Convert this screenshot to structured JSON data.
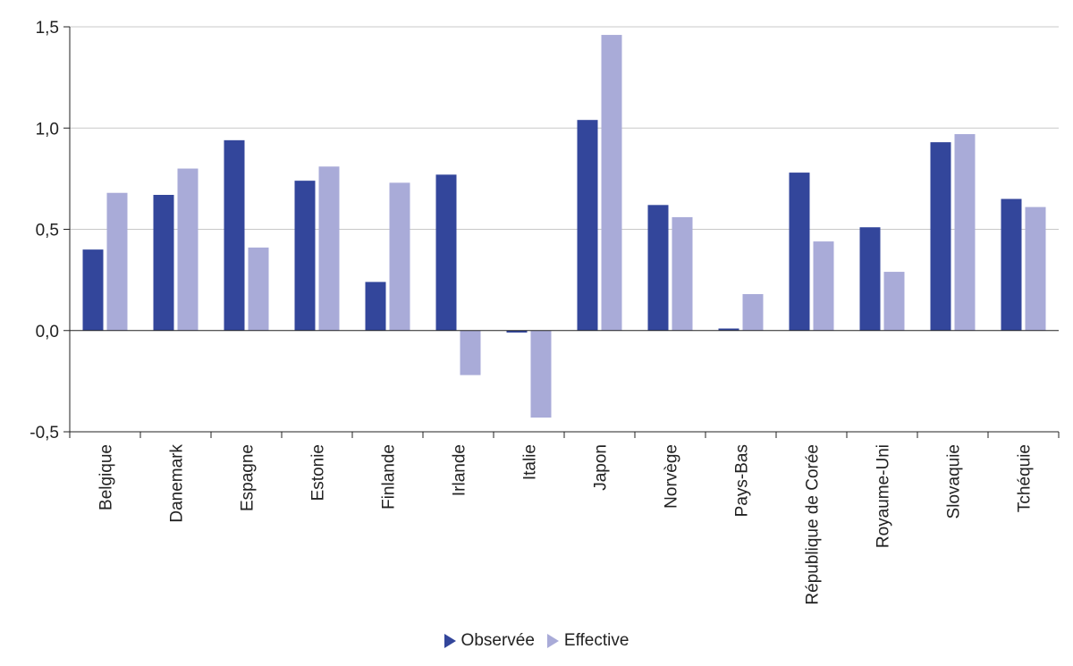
{
  "chart_data": {
    "type": "bar",
    "categories": [
      "Belgique",
      "Danemark",
      "Espagne",
      "Estonie",
      "Finlande",
      "Irlande",
      "Italie",
      "Japon",
      "Norvège",
      "Pays-Bas",
      "République de Corée",
      "Royaume-Uni",
      "Slovaquie",
      "Tchéquie"
    ],
    "series": [
      {
        "name": "Observée",
        "color": "#33469b",
        "values": [
          0.4,
          0.67,
          0.94,
          0.74,
          0.24,
          0.77,
          -0.01,
          1.04,
          0.62,
          0.01,
          0.78,
          0.51,
          0.93,
          0.65
        ]
      },
      {
        "name": "Effective",
        "color": "#a9abd8",
        "values": [
          0.68,
          0.8,
          0.41,
          0.81,
          0.73,
          -0.22,
          -0.43,
          1.46,
          0.56,
          0.18,
          0.44,
          0.29,
          0.97,
          0.61
        ]
      }
    ],
    "ylim": [
      -0.5,
      1.5
    ],
    "yticks": [
      -0.5,
      0.0,
      0.5,
      1.0,
      1.5
    ],
    "ytick_labels": [
      "-0,5",
      "0,0",
      "0,5",
      "1,0",
      "1,5"
    ],
    "grid": true,
    "legend_position": "bottom",
    "title": "",
    "xlabel": "",
    "ylabel": ""
  }
}
